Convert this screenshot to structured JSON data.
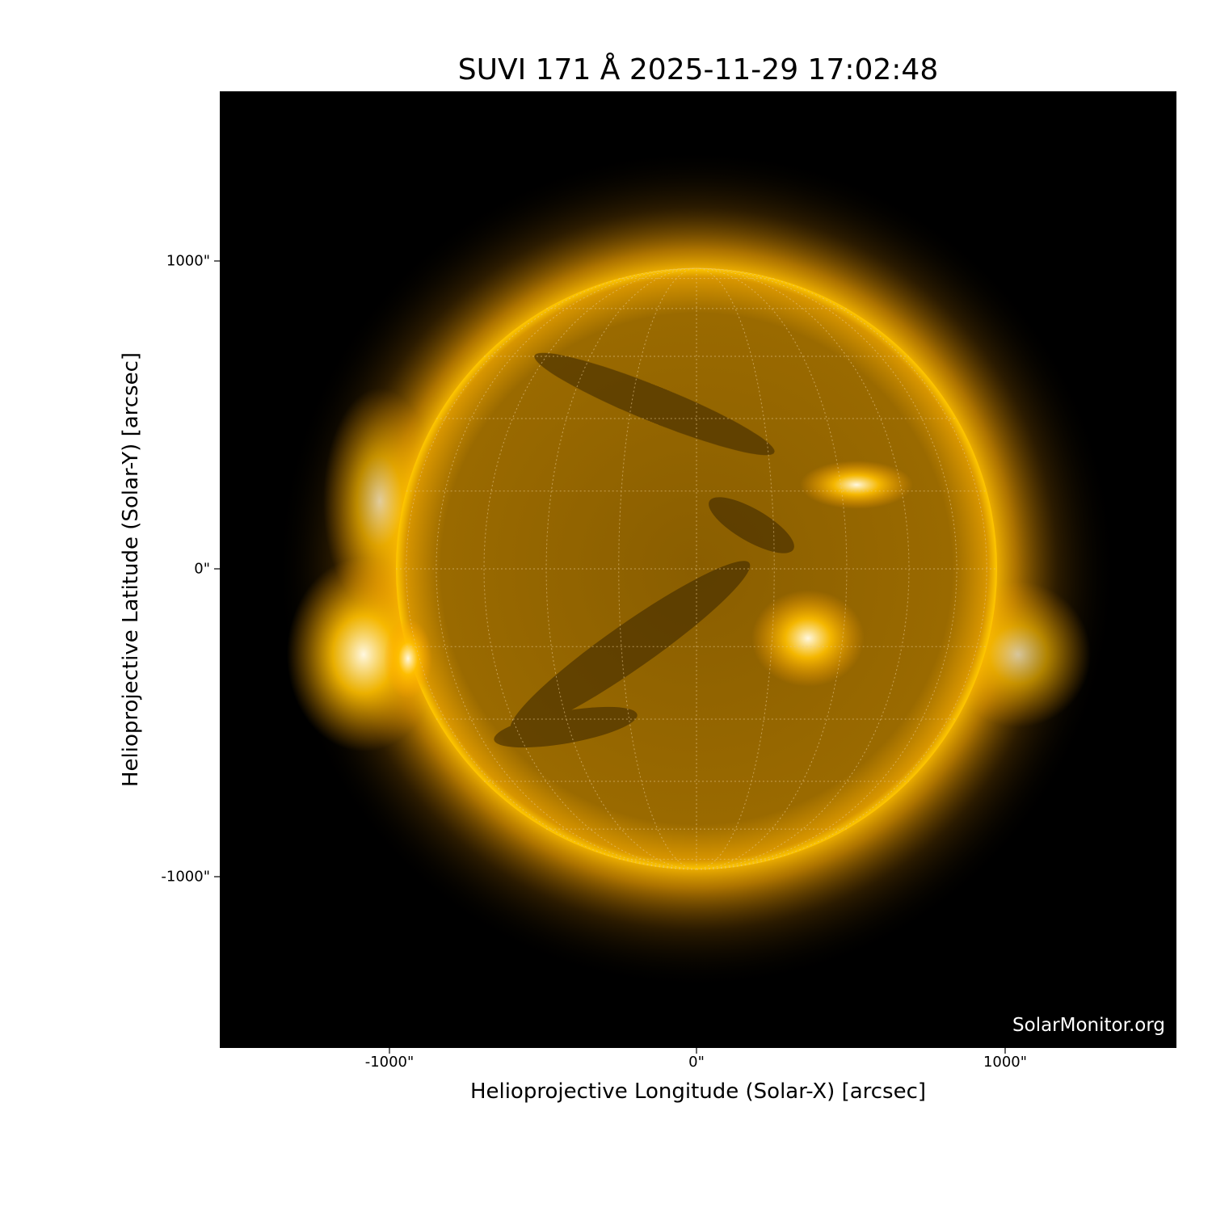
{
  "title": "SUVI 171 Å 2025-11-29 17:02:48",
  "credit": "SolarMonitor.org",
  "colors": {
    "disk": "#c88a00",
    "corona": "#ffb000",
    "background": "#000000"
  },
  "chart_data": {
    "type": "heatmap",
    "title": "SUVI 171 Å 2025-11-29 17:02:48",
    "xlabel": "Helioprojective Longitude (Solar-X) [arcsec]",
    "ylabel": "Helioprojective Latitude (Solar-Y) [arcsec]",
    "xlim": [
      -1550,
      1550
    ],
    "ylim": [
      -1550,
      1550
    ],
    "x_ticks": [
      {
        "value": -1000,
        "label": "-1000\""
      },
      {
        "value": 0,
        "label": "0\""
      },
      {
        "value": 1000,
        "label": "1000\""
      }
    ],
    "y_ticks": [
      {
        "value": 1000,
        "label": "1000\""
      },
      {
        "value": 0,
        "label": "0\""
      },
      {
        "value": -1000,
        "label": "-1000\""
      }
    ],
    "solar_radius_arcsec": 975,
    "grid": true
  }
}
